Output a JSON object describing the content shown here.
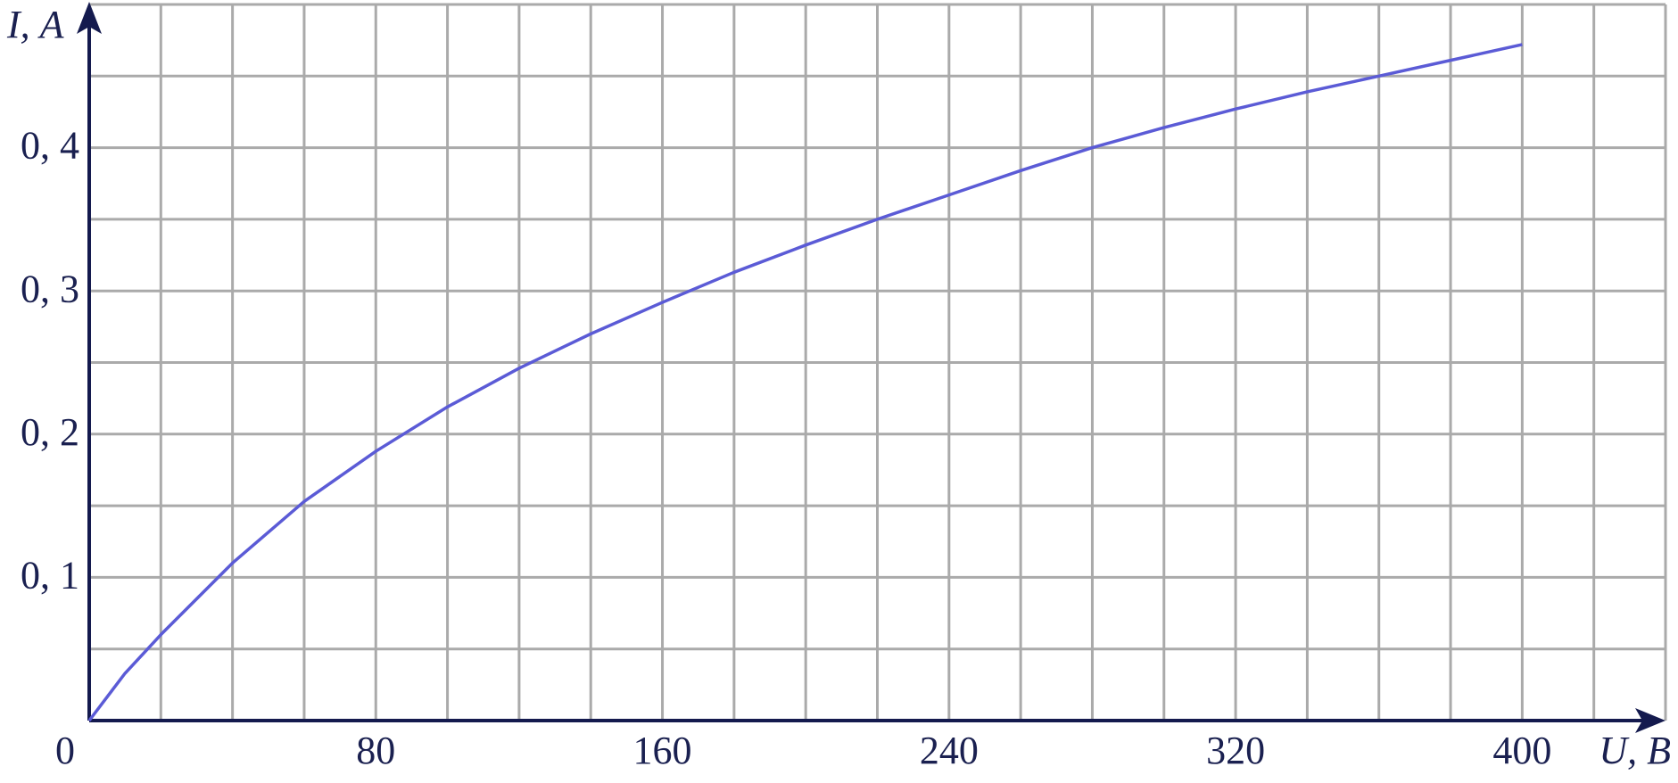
{
  "chart_data": {
    "type": "line",
    "xlabel": "U, В",
    "ylabel": "I, А",
    "x": [
      0,
      10,
      20,
      40,
      60,
      80,
      100,
      120,
      140,
      160,
      180,
      200,
      220,
      240,
      260,
      280,
      300,
      320,
      340,
      360,
      380,
      400
    ],
    "series": [
      {
        "color": "#5b5bd6",
        "values": [
          0,
          0.033,
          0.06,
          0.11,
          0.153,
          0.188,
          0.219,
          0.246,
          0.27,
          0.292,
          0.313,
          0.332,
          0.35,
          0.367,
          0.384,
          0.4,
          0.414,
          0.427,
          0.439,
          0.45,
          0.461,
          0.472
        ]
      }
    ],
    "xlim": [
      0,
      440
    ],
    "ylim": [
      0,
      0.5
    ],
    "xticks": [
      0,
      80,
      160,
      240,
      320,
      400
    ],
    "yticks": [
      {
        "value": 0.1,
        "label": "0, 1"
      },
      {
        "value": 0.2,
        "label": "0, 2"
      },
      {
        "value": 0.3,
        "label": "0, 3"
      },
      {
        "value": 0.4,
        "label": "0, 4"
      }
    ],
    "xminorticks": [
      20,
      40,
      60,
      80,
      100,
      120,
      140,
      160,
      180,
      200,
      220,
      240,
      260,
      280,
      300,
      320,
      340,
      360,
      380,
      400,
      420,
      440
    ],
    "yminorticks": [
      0.05,
      0.1,
      0.15,
      0.2,
      0.25,
      0.3,
      0.35,
      0.4,
      0.45,
      0.5
    ],
    "grid": true
  }
}
